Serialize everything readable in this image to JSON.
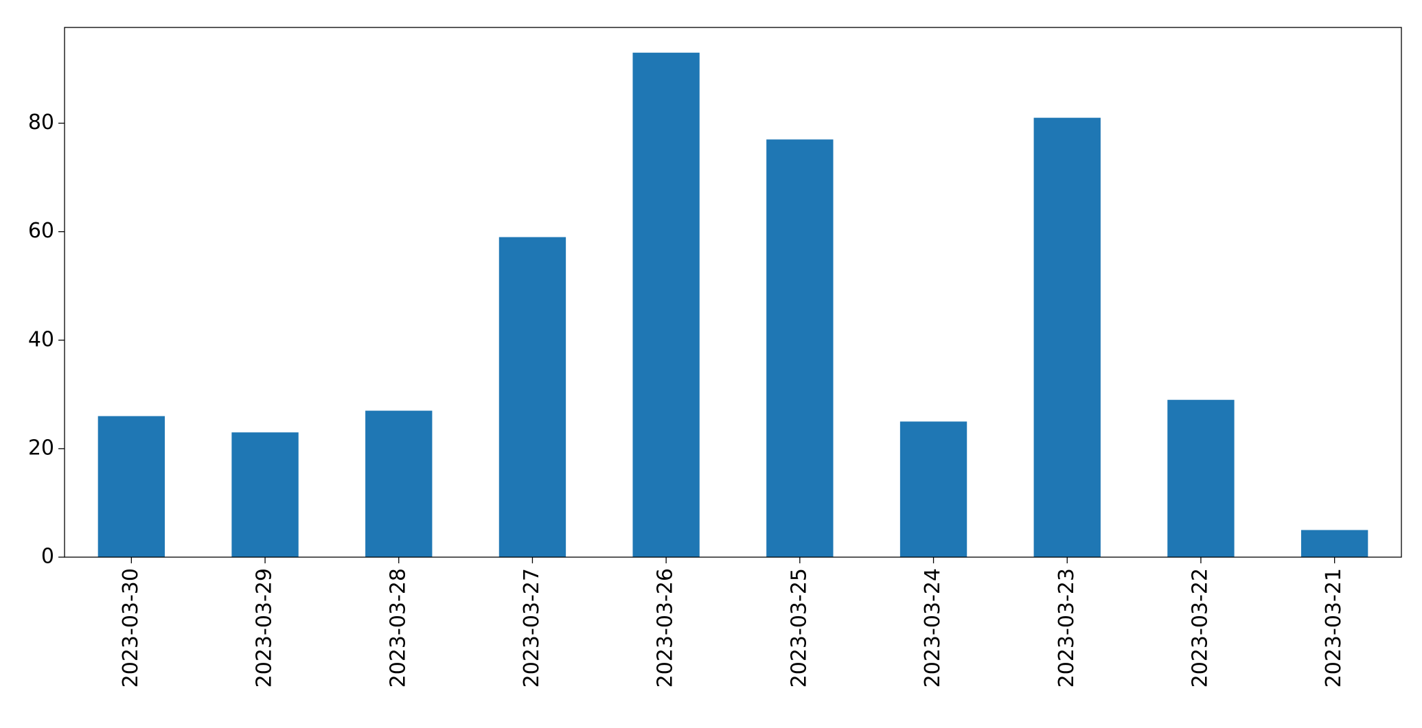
{
  "chart_data": {
    "type": "bar",
    "categories": [
      "2023-03-30",
      "2023-03-29",
      "2023-03-28",
      "2023-03-27",
      "2023-03-26",
      "2023-03-25",
      "2023-03-24",
      "2023-03-23",
      "2023-03-22",
      "2023-03-21"
    ],
    "values": [
      26,
      23,
      27,
      59,
      93,
      77,
      25,
      81,
      29,
      5
    ],
    "color": "#1f77b4",
    "ylim": [
      0,
      97.65
    ],
    "yticks": [
      0,
      20,
      40,
      60,
      80
    ],
    "grid": false
  }
}
